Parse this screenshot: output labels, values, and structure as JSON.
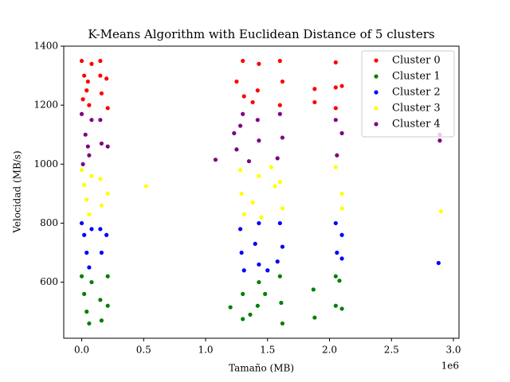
{
  "chart_data": {
    "type": "scatter",
    "title": "K-Means Algorithm with Euclidean Distance of 5 clusters",
    "x_label": "Tamaño (MB)",
    "y_label": "Velocidad (MB/s)",
    "x_offset_label": "1e6",
    "xlim": [
      -145000,
      3045000
    ],
    "ylim": [
      410,
      1400
    ],
    "xticks": [
      {
        "value": 0,
        "label": "0.0"
      },
      {
        "value": 500000,
        "label": "0.5"
      },
      {
        "value": 1000000,
        "label": "1.0"
      },
      {
        "value": 1500000,
        "label": "1.5"
      },
      {
        "value": 2000000,
        "label": "2.0"
      },
      {
        "value": 2500000,
        "label": "2.5"
      },
      {
        "value": 3000000,
        "label": "3.0"
      }
    ],
    "yticks": [
      600,
      800,
      1000,
      1200,
      1400
    ],
    "legend": "upper right",
    "series": [
      {
        "name": "Cluster 0",
        "color": "red",
        "x": [
          0,
          20000,
          40000,
          60000,
          80000,
          10000,
          50000,
          150000,
          150000,
          160000,
          210000,
          200000,
          1300000,
          1250000,
          1310000,
          1430000,
          1420000,
          1380000,
          1600000,
          1620000,
          1600000,
          1880000,
          1880000,
          2050000,
          2050000,
          2100000,
          2050000
        ],
        "y": [
          1350,
          1300,
          1250,
          1200,
          1340,
          1220,
          1280,
          1350,
          1300,
          1240,
          1190,
          1290,
          1350,
          1280,
          1230,
          1340,
          1250,
          1210,
          1350,
          1280,
          1200,
          1210,
          1255,
          1345,
          1260,
          1265,
          1190
        ]
      },
      {
        "name": "Cluster 1",
        "color": "green",
        "x": [
          0,
          20000,
          40000,
          60000,
          80000,
          150000,
          160000,
          210000,
          210000,
          1200000,
          1300000,
          1300000,
          1360000,
          1430000,
          1420000,
          1480000,
          1600000,
          1620000,
          1610000,
          1880000,
          1870000,
          2050000,
          2050000,
          2100000,
          2080000
        ],
        "y": [
          620,
          560,
          500,
          460,
          600,
          540,
          470,
          620,
          520,
          515,
          475,
          560,
          490,
          600,
          520,
          560,
          620,
          460,
          530,
          480,
          575,
          620,
          520,
          510,
          605
        ]
      },
      {
        "name": "Cluster 2",
        "color": "blue",
        "x": [
          0,
          20000,
          40000,
          60000,
          80000,
          150000,
          160000,
          200000,
          1280000,
          1290000,
          1310000,
          1430000,
          1400000,
          1430000,
          1500000,
          1600000,
          1620000,
          1580000,
          2050000,
          2060000,
          2100000,
          2100000,
          2880000
        ],
        "y": [
          800,
          760,
          700,
          650,
          780,
          780,
          700,
          760,
          780,
          700,
          640,
          800,
          730,
          660,
          640,
          800,
          720,
          670,
          800,
          700,
          760,
          680,
          665
        ]
      },
      {
        "name": "Cluster 3",
        "color": "yellow",
        "x": [
          0,
          20000,
          40000,
          60000,
          80000,
          150000,
          160000,
          210000,
          520000,
          1280000,
          1290000,
          1310000,
          1380000,
          1430000,
          1450000,
          1530000,
          1600000,
          1620000,
          1560000,
          2050000,
          2100000,
          2100000,
          2900000
        ],
        "y": [
          980,
          930,
          880,
          830,
          960,
          950,
          860,
          900,
          925,
          980,
          900,
          830,
          870,
          960,
          820,
          990,
          940,
          850,
          925,
          990,
          900,
          850,
          840
        ]
      },
      {
        "name": "Cluster 4",
        "color": "purple",
        "x": [
          0,
          30000,
          60000,
          80000,
          10000,
          50000,
          150000,
          160000,
          210000,
          1080000,
          1230000,
          1280000,
          1250000,
          1300000,
          1420000,
          1430000,
          1350000,
          1600000,
          1620000,
          1580000,
          2050000,
          2060000,
          2100000,
          2890000,
          2890000
        ],
        "y": [
          1170,
          1100,
          1030,
          1150,
          1000,
          1060,
          1150,
          1070,
          1060,
          1015,
          1105,
          1130,
          1050,
          1170,
          1150,
          1080,
          1010,
          1170,
          1090,
          1020,
          1150,
          1030,
          1105,
          1080,
          1100
        ]
      }
    ]
  }
}
